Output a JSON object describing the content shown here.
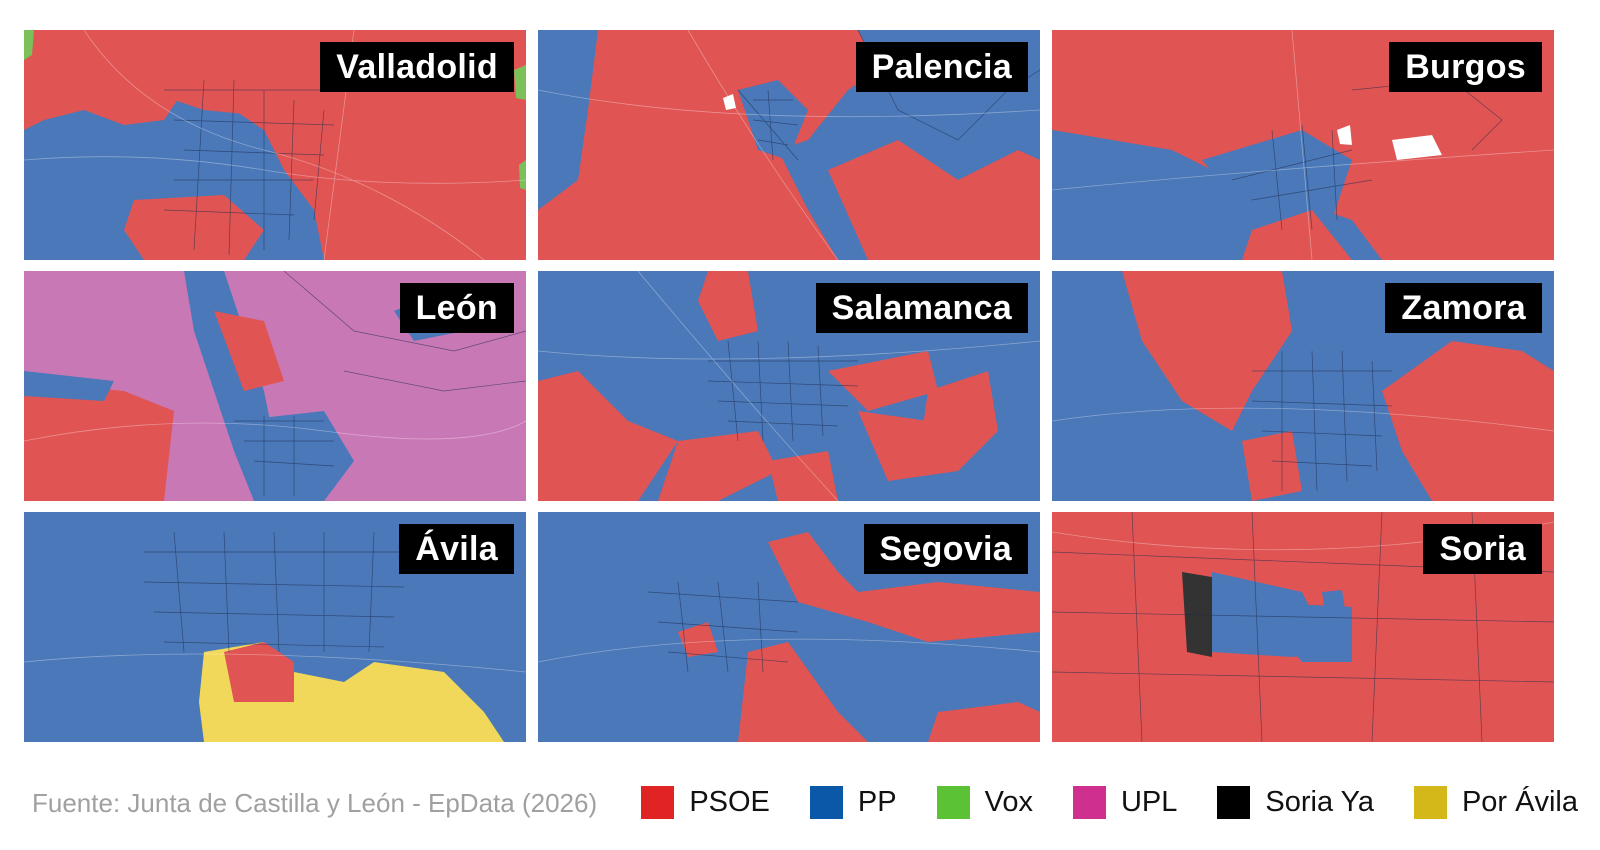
{
  "colors": {
    "PSOE": "#e02424",
    "PP": "#0b57a8",
    "Vox": "#5bc236",
    "UPL": "#cf2f8f",
    "Soria Ya": "#000000",
    "Por Ávila": "#d4b81a"
  },
  "panels": [
    {
      "city": "Valladolid",
      "dominant": "PSOE"
    },
    {
      "city": "Palencia",
      "dominant": "PSOE"
    },
    {
      "city": "Burgos",
      "dominant": "PSOE"
    },
    {
      "city": "León",
      "dominant": "UPL"
    },
    {
      "city": "Salamanca",
      "dominant": "PP"
    },
    {
      "city": "Zamora",
      "dominant": "PP"
    },
    {
      "city": "Ávila",
      "dominant": "PP"
    },
    {
      "city": "Segovia",
      "dominant": "PP"
    },
    {
      "city": "Soria",
      "dominant": "PSOE"
    }
  ],
  "legend": [
    {
      "label": "PSOE",
      "color": "#e02424"
    },
    {
      "label": "PP",
      "color": "#0b57a8"
    },
    {
      "label": "Vox",
      "color": "#5bc236"
    },
    {
      "label": "UPL",
      "color": "#cf2f8f"
    },
    {
      "label": "Soria Ya",
      "color": "#000000"
    },
    {
      "label": "Por Ávila",
      "color": "#d4b81a"
    }
  ],
  "source": "Fuente: Junta de Castilla y León - EpData (2026)"
}
